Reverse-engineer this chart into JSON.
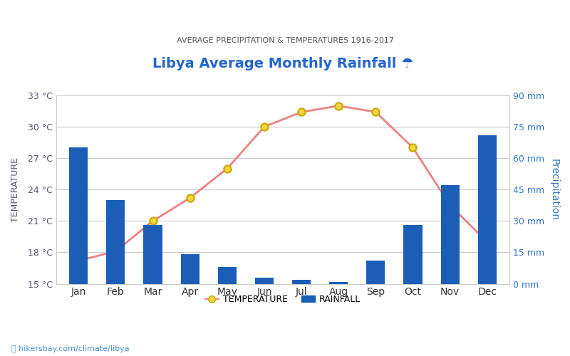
{
  "title": "Libya Average Monthly Rainfall ☂",
  "subtitle": "AVERAGE PRECIPITATION & TEMPERATURES 1916-2017",
  "months": [
    "Jan",
    "Feb",
    "Mar",
    "Apr",
    "May",
    "Jun",
    "Jul",
    "Aug",
    "Sep",
    "Oct",
    "Nov",
    "Dec"
  ],
  "rainfall_mm": [
    65,
    40,
    28,
    14,
    8,
    3,
    2,
    1,
    11,
    28,
    47,
    71
  ],
  "temperature_c": [
    17.2,
    18.1,
    21.0,
    23.2,
    26.0,
    30.0,
    31.4,
    32.0,
    31.4,
    28.0,
    22.5,
    19.0
  ],
  "bar_color": "#1a5eb8",
  "line_color": "#f08080",
  "marker_face": "#f5d442",
  "marker_edge": "#c8a800",
  "temp_ylim": [
    15,
    33
  ],
  "temp_yticks": [
    15,
    18,
    21,
    24,
    27,
    30,
    33
  ],
  "rain_ylim": [
    0,
    90
  ],
  "rain_yticks": [
    0,
    15,
    30,
    45,
    60,
    75,
    90
  ],
  "left_axis_color": "#555577",
  "right_axis_color": "#3377cc",
  "title_color": "#2266cc",
  "subtitle_color": "#555555",
  "watermark": "📍 hikersbay.com/climate/libya",
  "xlabel_color": "#333333",
  "grid_color": "#cccccc",
  "background_color": "#ffffff"
}
